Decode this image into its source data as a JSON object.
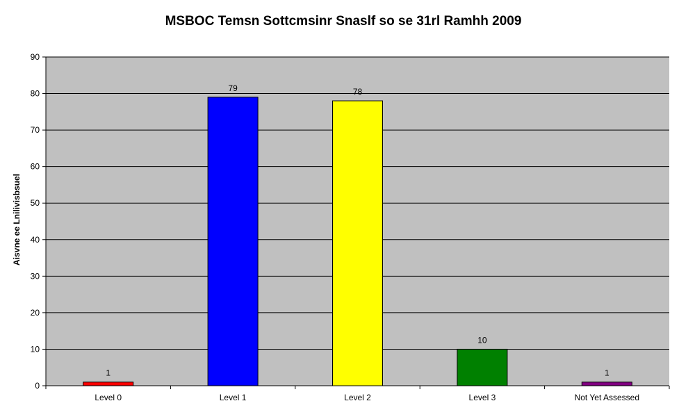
{
  "chart_data": {
    "type": "bar",
    "title": "MSBOC Temsn Sottcmsinr Snaslf so se 31rl Ramhh 2009",
    "xlabel": "",
    "ylabel": "Aisvne ee Lnilivisbsuel",
    "categories": [
      "Level 0",
      "Level 1",
      "Level 2",
      "Level 3",
      "Not Yet Assessed"
    ],
    "values": [
      1,
      79,
      78,
      10,
      1
    ],
    "data_labels": [
      "1",
      "79",
      "78",
      "10",
      "1"
    ],
    "bar_colors": [
      "#ff0000",
      "#0000ff",
      "#ffff00",
      "#008000",
      "#800080"
    ],
    "ylim": [
      0,
      90
    ],
    "yticks": [
      0,
      10,
      20,
      30,
      40,
      50,
      60,
      70,
      80,
      90
    ],
    "ytick_labels": [
      "0",
      "10",
      "20",
      "30",
      "40",
      "50",
      "60",
      "70",
      "80",
      "90"
    ],
    "grid": true,
    "plot_background": "#c0c0c0",
    "gridline_color": "#000000",
    "legend": "none"
  }
}
